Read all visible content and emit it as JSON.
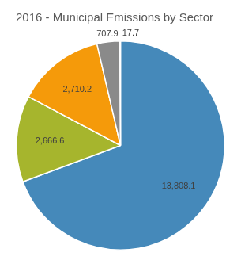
{
  "chart_data": {
    "type": "pie",
    "title": "2016 - Municipal Emissions by Sector",
    "categories": [
      null,
      null,
      null,
      null,
      null
    ],
    "values": [
      13808.1,
      2666.6,
      2710.2,
      707.9,
      17.7
    ],
    "value_labels": [
      "13,808.1",
      "2,666.6",
      "2,710.2",
      "707.9",
      "17.7"
    ],
    "colors": [
      "#4589ba",
      "#a6b52d",
      "#f59a0a",
      "#8a8a8a",
      "#3a6fa3"
    ],
    "data_labels": true
  }
}
